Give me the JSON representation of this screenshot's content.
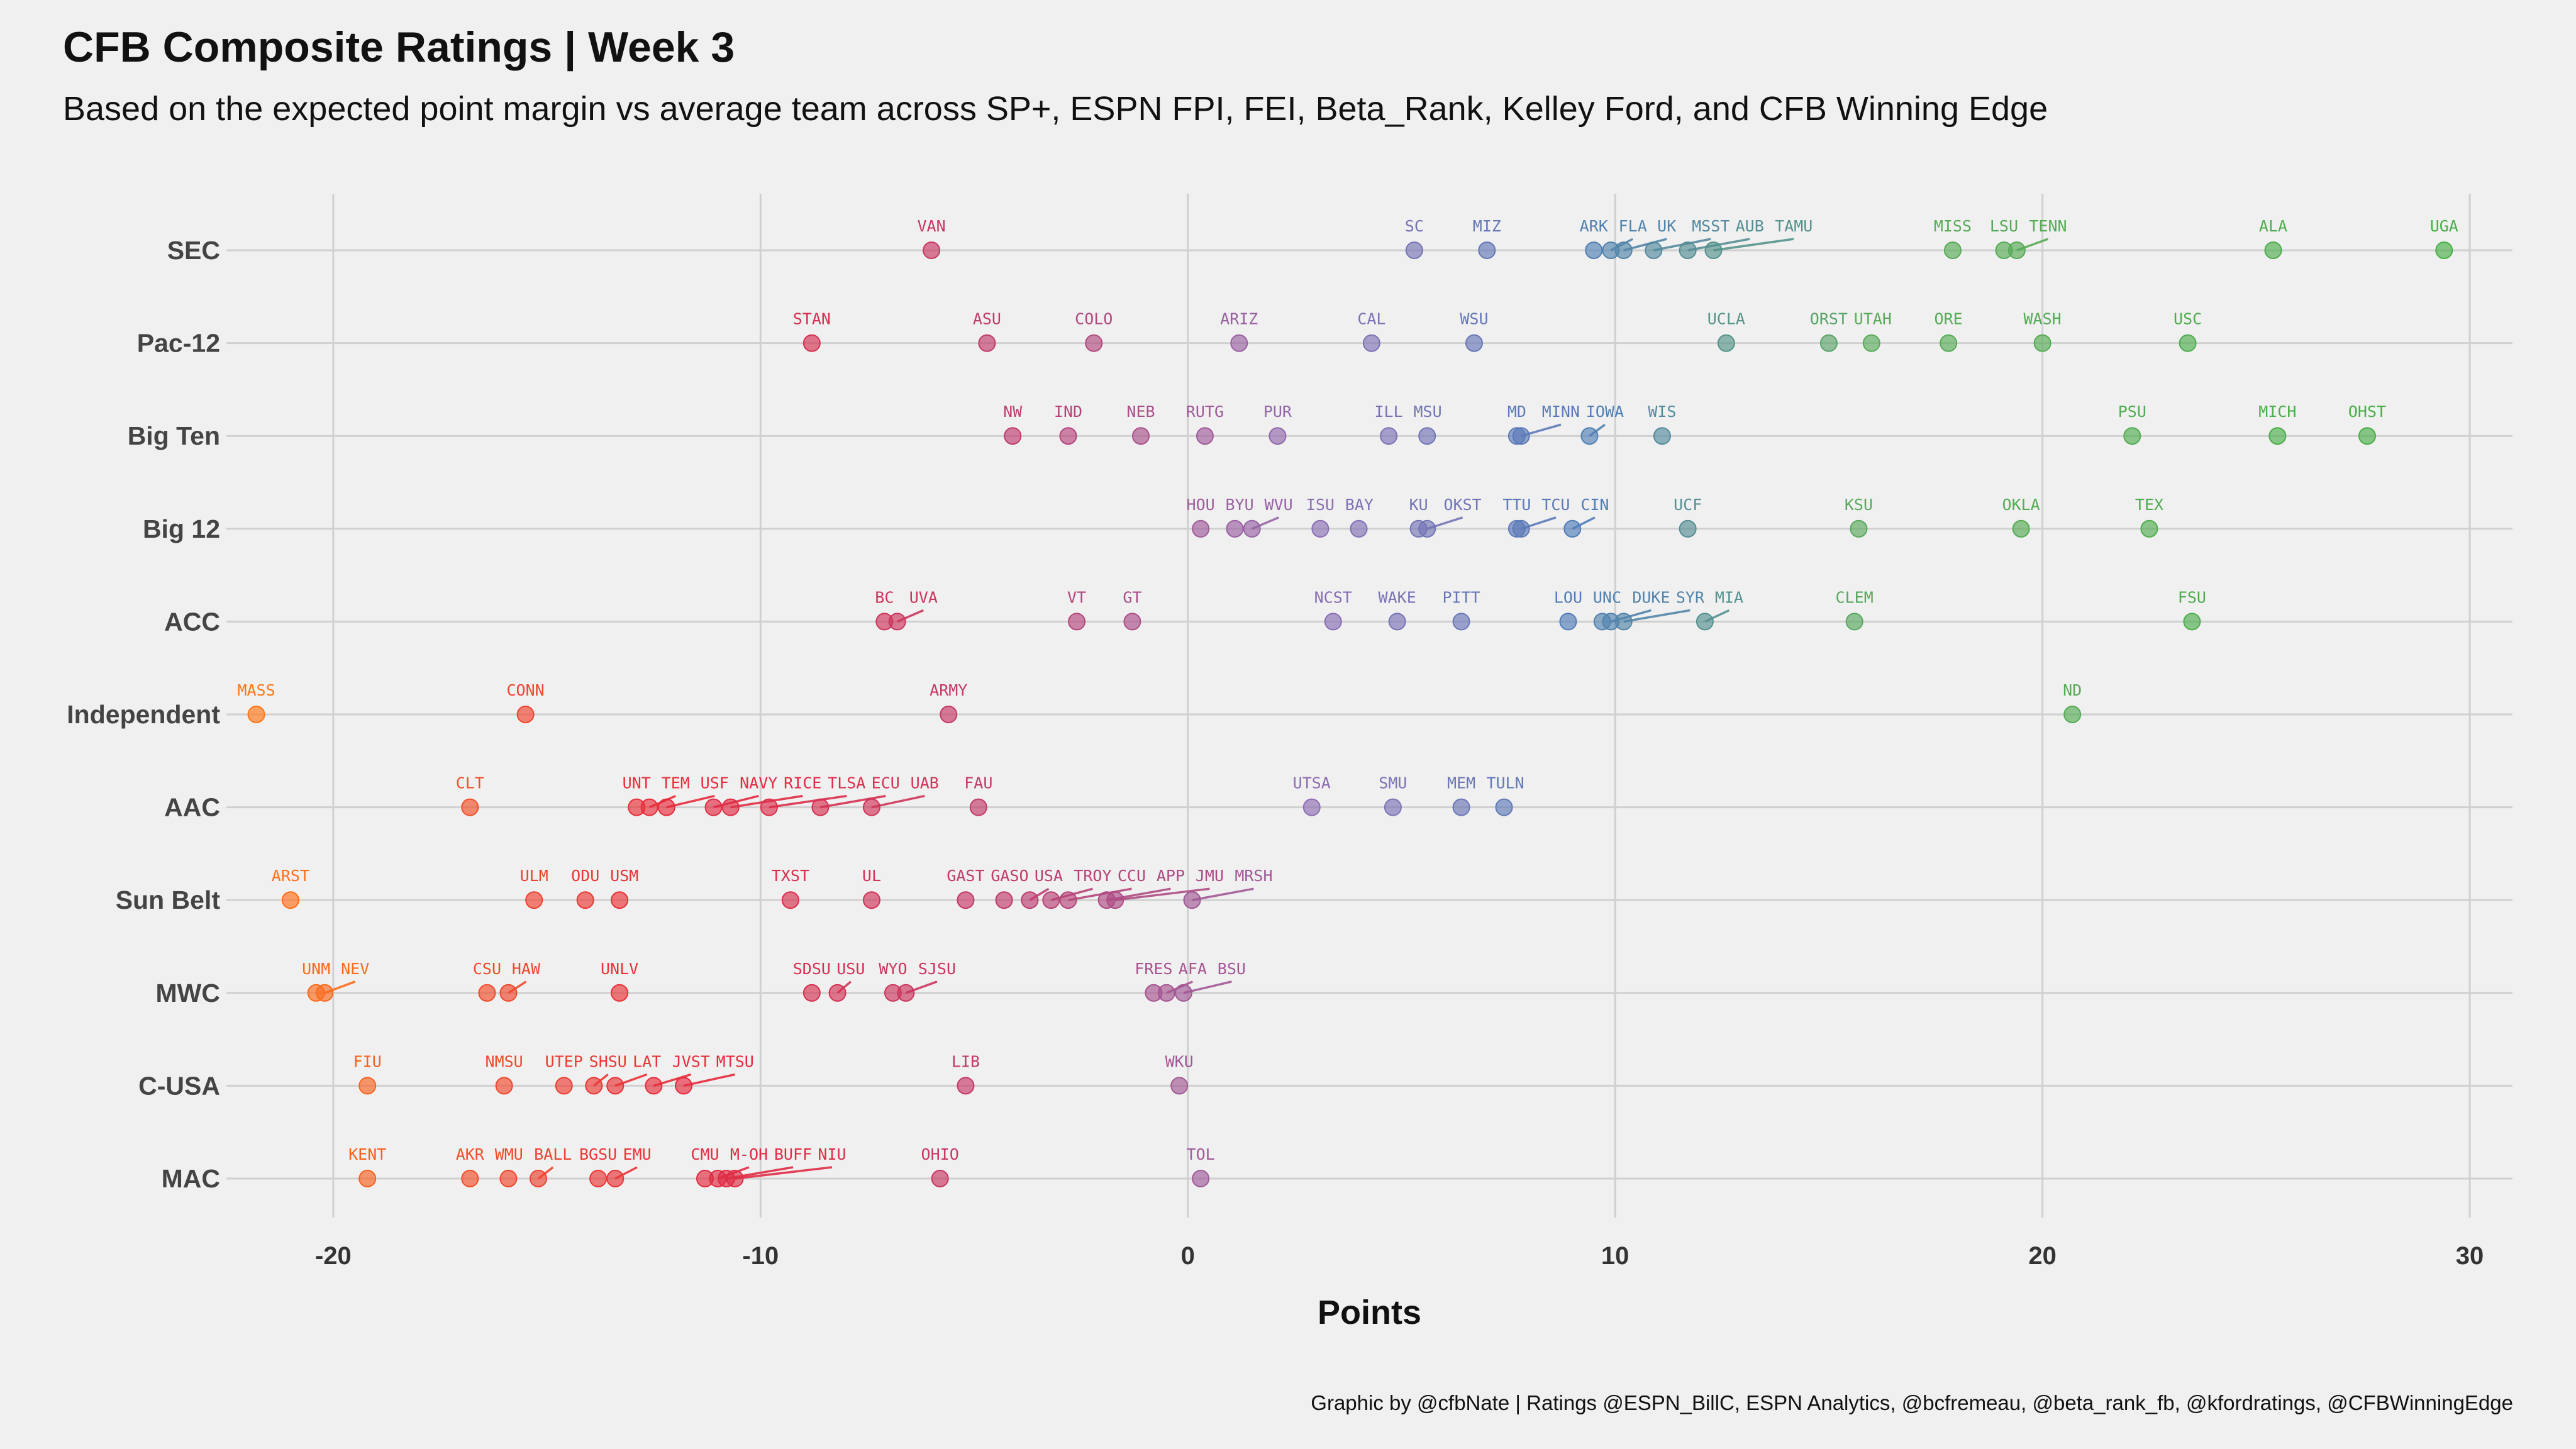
{
  "title": "CFB Composite Ratings | Week 3",
  "subtitle": "Based on the expected point margin vs average team across SP+, ESPN FPI, FEI, Beta_Rank, Kelley Ford, and CFB Winning Edge",
  "caption": "Graphic by @cfbNate | Ratings @ESPN_BillC, ESPN Analytics, @bcfremeau, @beta_rank_fb, @kfordratings, @CFBWinningEdge",
  "chart_data": {
    "type": "scatter",
    "xlabel": "Points",
    "xlim": [
      -22.5,
      31
    ],
    "xticks": [
      -20,
      -10,
      0,
      10,
      20,
      30
    ],
    "grid": true,
    "conferences": [
      {
        "name": "SEC",
        "teams": [
          {
            "t": "VAN",
            "v": -6.0
          },
          {
            "t": "SC",
            "v": 5.3
          },
          {
            "t": "MIZ",
            "v": 7.0
          },
          {
            "t": "ARK",
            "v": 9.5
          },
          {
            "t": "FLA",
            "v": 9.9
          },
          {
            "t": "UK",
            "v": 10.2
          },
          {
            "t": "MSST",
            "v": 10.9
          },
          {
            "t": "AUB",
            "v": 11.7
          },
          {
            "t": "TAMU",
            "v": 12.3
          },
          {
            "t": "MISS",
            "v": 17.9
          },
          {
            "t": "LSU",
            "v": 19.1
          },
          {
            "t": "TENN",
            "v": 19.4
          },
          {
            "t": "ALA",
            "v": 25.4
          },
          {
            "t": "UGA",
            "v": 29.4
          }
        ]
      },
      {
        "name": "Pac-12",
        "teams": [
          {
            "t": "STAN",
            "v": -8.8
          },
          {
            "t": "ASU",
            "v": -4.7
          },
          {
            "t": "COLO",
            "v": -2.2
          },
          {
            "t": "ARIZ",
            "v": 1.2
          },
          {
            "t": "CAL",
            "v": 4.3
          },
          {
            "t": "WSU",
            "v": 6.7
          },
          {
            "t": "UCLA",
            "v": 12.6
          },
          {
            "t": "ORST",
            "v": 15.0
          },
          {
            "t": "UTAH",
            "v": 16.0
          },
          {
            "t": "ORE",
            "v": 17.8
          },
          {
            "t": "WASH",
            "v": 20.0
          },
          {
            "t": "USC",
            "v": 23.4
          }
        ]
      },
      {
        "name": "Big Ten",
        "teams": [
          {
            "t": "NW",
            "v": -4.1
          },
          {
            "t": "IND",
            "v": -2.8
          },
          {
            "t": "NEB",
            "v": -1.1
          },
          {
            "t": "RUTG",
            "v": 0.4
          },
          {
            "t": "PUR",
            "v": 2.1
          },
          {
            "t": "ILL",
            "v": 4.7
          },
          {
            "t": "MSU",
            "v": 5.6
          },
          {
            "t": "MD",
            "v": 7.7
          },
          {
            "t": "MINN",
            "v": 7.8
          },
          {
            "t": "IOWA",
            "v": 9.4
          },
          {
            "t": "WIS",
            "v": 11.1
          },
          {
            "t": "PSU",
            "v": 22.1
          },
          {
            "t": "MICH",
            "v": 25.5
          },
          {
            "t": "OHST",
            "v": 27.6
          }
        ]
      },
      {
        "name": "Big 12",
        "teams": [
          {
            "t": "HOU",
            "v": 0.3
          },
          {
            "t": "BYU",
            "v": 1.1
          },
          {
            "t": "WVU",
            "v": 1.5
          },
          {
            "t": "ISU",
            "v": 3.1
          },
          {
            "t": "BAY",
            "v": 4.0
          },
          {
            "t": "KU",
            "v": 5.4
          },
          {
            "t": "OKST",
            "v": 5.6
          },
          {
            "t": "TTU",
            "v": 7.7
          },
          {
            "t": "CIN",
            "v": 9.0
          },
          {
            "t": "TCU",
            "v": 7.8
          },
          {
            "t": "UCF",
            "v": 11.7
          },
          {
            "t": "KSU",
            "v": 15.7
          },
          {
            "t": "OKLA",
            "v": 19.5
          },
          {
            "t": "TEX",
            "v": 22.5
          }
        ]
      },
      {
        "name": "ACC",
        "teams": [
          {
            "t": "BC",
            "v": -7.1
          },
          {
            "t": "UVA",
            "v": -6.8
          },
          {
            "t": "VT",
            "v": -2.6
          },
          {
            "t": "GT",
            "v": -1.3
          },
          {
            "t": "NCST",
            "v": 3.4
          },
          {
            "t": "WAKE",
            "v": 4.9
          },
          {
            "t": "PITT",
            "v": 6.4
          },
          {
            "t": "LOU",
            "v": 8.9
          },
          {
            "t": "UNC",
            "v": 9.7
          },
          {
            "t": "DUKE",
            "v": 9.9
          },
          {
            "t": "SYR",
            "v": 10.2
          },
          {
            "t": "MIA",
            "v": 12.1
          },
          {
            "t": "CLEM",
            "v": 15.6
          },
          {
            "t": "FSU",
            "v": 23.5
          }
        ]
      },
      {
        "name": "Independent",
        "teams": [
          {
            "t": "MASS",
            "v": -21.8
          },
          {
            "t": "CONN",
            "v": -15.5
          },
          {
            "t": "ARMY",
            "v": -5.6
          },
          {
            "t": "ND",
            "v": 20.7
          }
        ]
      },
      {
        "name": "AAC",
        "teams": [
          {
            "t": "CLT",
            "v": -16.8
          },
          {
            "t": "UNT",
            "v": -12.9
          },
          {
            "t": "TEM",
            "v": -12.6
          },
          {
            "t": "USF",
            "v": -12.2
          },
          {
            "t": "NAVY",
            "v": -11.1
          },
          {
            "t": "RICE",
            "v": -10.7
          },
          {
            "t": "TLSA",
            "v": -9.8
          },
          {
            "t": "ECU",
            "v": -8.6
          },
          {
            "t": "UAB",
            "v": -7.4
          },
          {
            "t": "FAU",
            "v": -4.9
          },
          {
            "t": "UTSA",
            "v": 2.9
          },
          {
            "t": "SMU",
            "v": 4.8
          },
          {
            "t": "MEM",
            "v": 6.4
          },
          {
            "t": "TULN",
            "v": 7.4
          }
        ]
      },
      {
        "name": "Sun Belt",
        "teams": [
          {
            "t": "ARST",
            "v": -21.0
          },
          {
            "t": "ULM",
            "v": -15.3
          },
          {
            "t": "ODU",
            "v": -14.1
          },
          {
            "t": "USM",
            "v": -13.3
          },
          {
            "t": "TXST",
            "v": -9.3
          },
          {
            "t": "UL",
            "v": -7.4
          },
          {
            "t": "GAST",
            "v": -5.2
          },
          {
            "t": "GASO",
            "v": -4.3
          },
          {
            "t": "USA",
            "v": -3.7
          },
          {
            "t": "TROY",
            "v": -3.2
          },
          {
            "t": "CCU",
            "v": -2.8
          },
          {
            "t": "APP",
            "v": -1.9
          },
          {
            "t": "JMU",
            "v": -1.7
          },
          {
            "t": "MRSH",
            "v": 0.1
          }
        ]
      },
      {
        "name": "MWC",
        "teams": [
          {
            "t": "UNM",
            "v": -20.4
          },
          {
            "t": "NEV",
            "v": -20.2
          },
          {
            "t": "CSU",
            "v": -16.4
          },
          {
            "t": "HAW",
            "v": -15.9
          },
          {
            "t": "UNLV",
            "v": -13.3
          },
          {
            "t": "SDSU",
            "v": -8.8
          },
          {
            "t": "USU",
            "v": -8.2
          },
          {
            "t": "WYO",
            "v": -6.9
          },
          {
            "t": "SJSU",
            "v": -6.6
          },
          {
            "t": "FRES",
            "v": -0.8
          },
          {
            "t": "AFA",
            "v": -0.5
          },
          {
            "t": "BSU",
            "v": -0.1
          }
        ]
      },
      {
        "name": "C-USA",
        "teams": [
          {
            "t": "FIU",
            "v": -19.2
          },
          {
            "t": "NMSU",
            "v": -16.0
          },
          {
            "t": "UTEP",
            "v": -14.6
          },
          {
            "t": "SHSU",
            "v": -13.9
          },
          {
            "t": "LAT",
            "v": -13.4
          },
          {
            "t": "JVST",
            "v": -12.5
          },
          {
            "t": "MTSU",
            "v": -11.8
          },
          {
            "t": "LIB",
            "v": -5.2
          },
          {
            "t": "WKU",
            "v": -0.2
          }
        ]
      },
      {
        "name": "MAC",
        "teams": [
          {
            "t": "KENT",
            "v": -19.2
          },
          {
            "t": "AKR",
            "v": -16.8
          },
          {
            "t": "WMU",
            "v": -15.9
          },
          {
            "t": "BALL",
            "v": -15.2
          },
          {
            "t": "BGSU",
            "v": -13.8
          },
          {
            "t": "EMU",
            "v": -13.4
          },
          {
            "t": "CMU",
            "v": -11.3
          },
          {
            "t": "NIU",
            "v": -10.6
          },
          {
            "t": "M-OH",
            "v": -11.0
          },
          {
            "t": "BUFF",
            "v": -10.8
          },
          {
            "t": "OHIO",
            "v": -5.8
          },
          {
            "t": "TOL",
            "v": 0.3
          }
        ]
      }
    ]
  }
}
